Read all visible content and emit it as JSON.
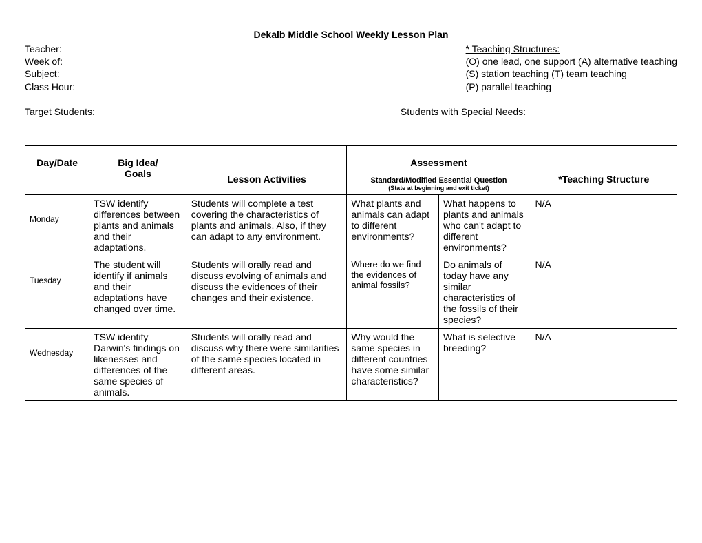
{
  "title": "Dekalb Middle School Weekly Lesson Plan",
  "header": {
    "left": {
      "teacher": "Teacher:",
      "week_of": "Week of:",
      "subject": "Subject:",
      "class_hour": "Class Hour:"
    },
    "right": {
      "structures_title": "* Teaching Structures:",
      "line1": "(O) one lead, one support   (A) alternative teaching",
      "line2": "(S) station teaching              (T) team teaching",
      "line3": "(P) parallel teaching"
    }
  },
  "students": {
    "target": "Target Students:",
    "special": "Students with Special Needs:"
  },
  "columns": {
    "day": "Day/Date",
    "goals_l1": "Big Idea/",
    "goals_l2": "Goals",
    "activities": "Lesson Activities",
    "assessment": "Assessment",
    "assessment_sub": "Standard/Modified Essential Question",
    "assessment_sub2": "(State at beginning and exit ticket)",
    "structure": "*Teaching Structure"
  },
  "rows": [
    {
      "day": "Monday",
      "goals": "TSW identify differences between plants and animals and their adaptations.",
      "activities": "Students will complete a test covering the characteristics of plants and animals.  Also, if they can adapt to any environment.",
      "q1": "What plants and animals can adapt to different environments?",
      "q2": "What happens to plants and animals who can't adapt to different environments?",
      "structure": "N/A",
      "q1_small": false
    },
    {
      "day": "Tuesday",
      "goals": "The student will identify if animals and their adaptations have changed over time.",
      "activities": "Students will orally read and discuss evolving of animals and discuss the evidences of their changes and their existence.",
      "q1": "Where do we find the evidences of animal fossils?",
      "q2": "Do animals of today have any similar characteristics of the fossils of their species?",
      "structure": "N/A",
      "q1_small": true
    },
    {
      "day": "Wednesday",
      "goals": "TSW identify Darwin's findings on likenesses and differences of the same species of animals.",
      "activities": "Students will orally read and discuss why there were similarities of the same species located in different areas.",
      "q1": "Why would the same species in different countries have some similar characteristics?",
      "q2": "What is selective breeding?",
      "structure": "N/A",
      "q1_small": false
    }
  ]
}
